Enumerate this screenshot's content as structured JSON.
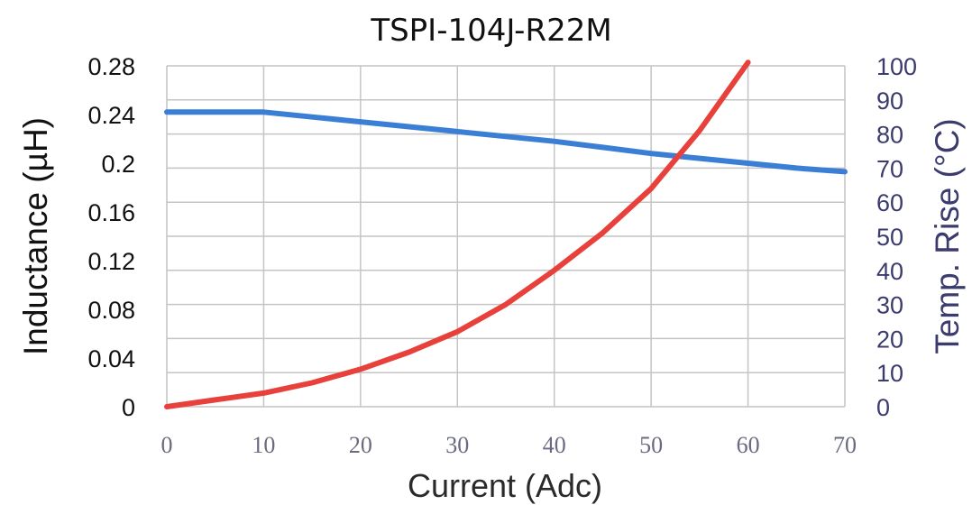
{
  "chart_data": {
    "type": "line",
    "title": "TSPI-104J-R22M",
    "xlabel": "Current (Adc)",
    "ylabel_left": "Inductance (µH)",
    "ylabel_right": "Temp. Rise (°C)",
    "xlim": [
      0,
      70
    ],
    "ylim_left": [
      0,
      0.28
    ],
    "ylim_right": [
      0,
      100
    ],
    "x_ticks": [
      "0",
      "10",
      "20",
      "30",
      "40",
      "50",
      "60",
      "70"
    ],
    "y_ticks_left": [
      "0",
      "0.04",
      "0.08",
      "0.12",
      "0.16",
      "0.2",
      "0.24",
      "0.28"
    ],
    "y_ticks_right": [
      "0",
      "10",
      "20",
      "30",
      "40",
      "50",
      "60",
      "70",
      "80",
      "90",
      "100"
    ],
    "grid": true,
    "series": [
      {
        "axis": "left",
        "color": "#3a7fd5",
        "x": [
          0,
          5,
          10,
          15,
          20,
          25,
          30,
          35,
          40,
          45,
          50,
          55,
          60,
          65,
          70
        ],
        "values": [
          0.242,
          0.242,
          0.242,
          0.238,
          0.234,
          0.23,
          0.226,
          0.222,
          0.218,
          0.213,
          0.208,
          0.204,
          0.2,
          0.196,
          0.193
        ]
      },
      {
        "axis": "right",
        "color": "#e8403a",
        "x": [
          0,
          5,
          10,
          15,
          20,
          25,
          30,
          35,
          40,
          45,
          50,
          55,
          60
        ],
        "values": [
          0,
          2,
          4,
          7,
          11,
          16,
          22,
          30,
          40,
          51,
          64,
          81,
          101
        ]
      }
    ]
  }
}
